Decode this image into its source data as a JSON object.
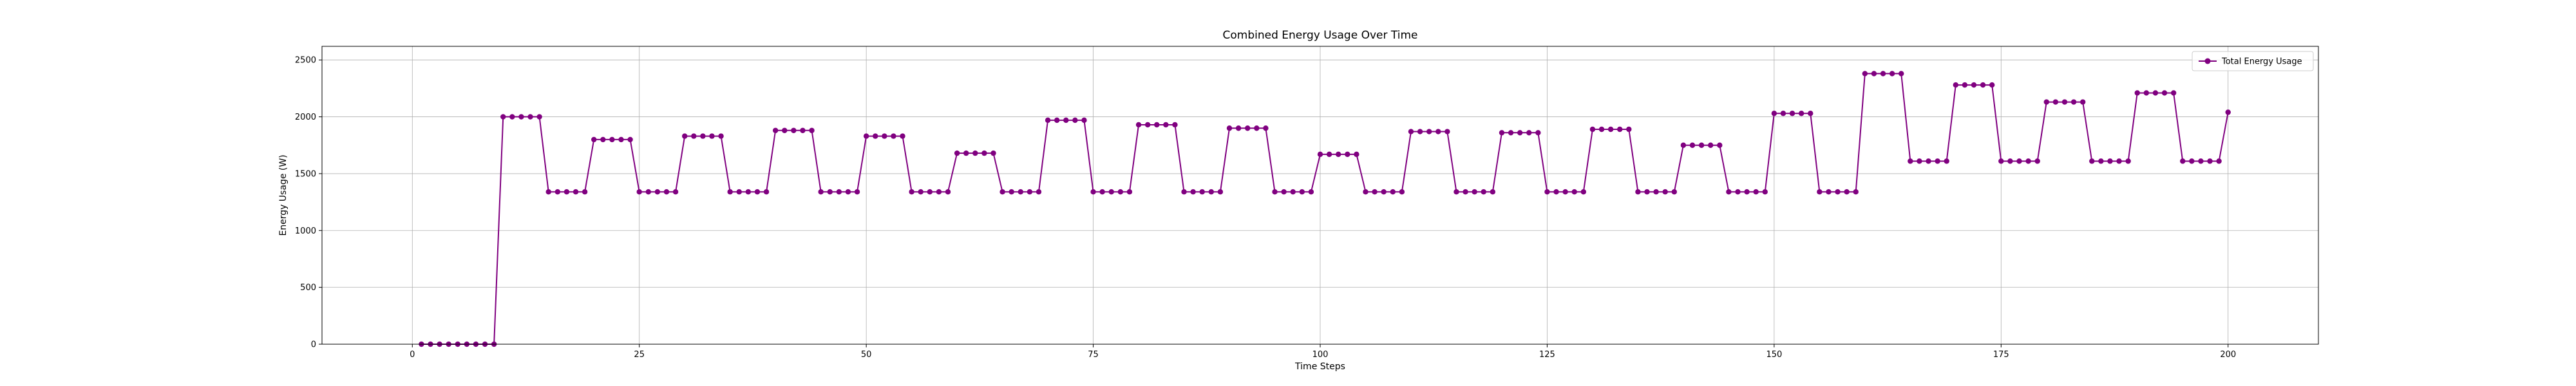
{
  "chart_data": {
    "type": "line",
    "title": "Combined Energy Usage Over Time",
    "xlabel": "Time Steps",
    "ylabel": "Energy Usage (W)",
    "xlim": [
      -9.95,
      209.95
    ],
    "ylim": [
      0,
      2620
    ],
    "xticks": [
      0,
      25,
      50,
      75,
      100,
      125,
      150,
      175,
      200
    ],
    "yticks": [
      0,
      500,
      1000,
      1500,
      2000,
      2500
    ],
    "grid": true,
    "legend_position": "top-right",
    "series": [
      {
        "name": "Total Energy Usage",
        "color": "#800080",
        "marker": "circle",
        "x": [
          1,
          2,
          3,
          4,
          5,
          6,
          7,
          8,
          9,
          10,
          11,
          12,
          13,
          14,
          15,
          16,
          17,
          18,
          19,
          20,
          21,
          22,
          23,
          24,
          25,
          26,
          27,
          28,
          29,
          30,
          31,
          32,
          33,
          34,
          35,
          36,
          37,
          38,
          39,
          40,
          41,
          42,
          43,
          44,
          45,
          46,
          47,
          48,
          49,
          50,
          51,
          52,
          53,
          54,
          55,
          56,
          57,
          58,
          59,
          60,
          61,
          62,
          63,
          64,
          65,
          66,
          67,
          68,
          69,
          70,
          71,
          72,
          73,
          74,
          75,
          76,
          77,
          78,
          79,
          80,
          81,
          82,
          83,
          84,
          85,
          86,
          87,
          88,
          89,
          90,
          91,
          92,
          93,
          94,
          95,
          96,
          97,
          98,
          99,
          100,
          101,
          102,
          103,
          104,
          105,
          106,
          107,
          108,
          109,
          110,
          111,
          112,
          113,
          114,
          115,
          116,
          117,
          118,
          119,
          120,
          121,
          122,
          123,
          124,
          125,
          126,
          127,
          128,
          129,
          130,
          131,
          132,
          133,
          134,
          135,
          136,
          137,
          138,
          139,
          140,
          141,
          142,
          143,
          144,
          145,
          146,
          147,
          148,
          149,
          150,
          151,
          152,
          153,
          154,
          155,
          156,
          157,
          158,
          159,
          160,
          161,
          162,
          163,
          164,
          165,
          166,
          167,
          168,
          169,
          170,
          171,
          172,
          173,
          174,
          175,
          176,
          177,
          178,
          179,
          180,
          181,
          182,
          183,
          184,
          185,
          186,
          187,
          188,
          189,
          190,
          191,
          192,
          193,
          194,
          195,
          196,
          197,
          198,
          199,
          200
        ],
        "values": [
          0,
          0,
          0,
          0,
          0,
          0,
          0,
          0,
          0,
          2000,
          2000,
          2000,
          2000,
          2000,
          1340,
          1340,
          1340,
          1340,
          1340,
          1800,
          1800,
          1800,
          1800,
          1800,
          1340,
          1340,
          1340,
          1340,
          1340,
          1830,
          1830,
          1830,
          1830,
          1830,
          1340,
          1340,
          1340,
          1340,
          1340,
          1880,
          1880,
          1880,
          1880,
          1880,
          1340,
          1340,
          1340,
          1340,
          1340,
          1830,
          1830,
          1830,
          1830,
          1830,
          1340,
          1340,
          1340,
          1340,
          1340,
          1680,
          1680,
          1680,
          1680,
          1680,
          1340,
          1340,
          1340,
          1340,
          1340,
          1970,
          1970,
          1970,
          1970,
          1970,
          1340,
          1340,
          1340,
          1340,
          1340,
          1930,
          1930,
          1930,
          1930,
          1930,
          1340,
          1340,
          1340,
          1340,
          1340,
          1900,
          1900,
          1900,
          1900,
          1900,
          1340,
          1340,
          1340,
          1340,
          1340,
          1670,
          1670,
          1670,
          1670,
          1670,
          1340,
          1340,
          1340,
          1340,
          1340,
          1870,
          1870,
          1870,
          1870,
          1870,
          1340,
          1340,
          1340,
          1340,
          1340,
          1860,
          1860,
          1860,
          1860,
          1860,
          1340,
          1340,
          1340,
          1340,
          1340,
          1890,
          1890,
          1890,
          1890,
          1890,
          1340,
          1340,
          1340,
          1340,
          1340,
          1750,
          1750,
          1750,
          1750,
          1750,
          1340,
          1340,
          1340,
          1340,
          1340,
          2030,
          2030,
          2030,
          2030,
          2030,
          1340,
          1340,
          1340,
          1340,
          1340,
          2380,
          2380,
          2380,
          2380,
          2380,
          1610,
          1610,
          1610,
          1610,
          1610,
          2280,
          2280,
          2280,
          2280,
          2280,
          1610,
          1610,
          1610,
          1610,
          1610,
          2130,
          2130,
          2130,
          2130,
          2130,
          1610,
          1610,
          1610,
          1610,
          1610,
          2210,
          2210,
          2210,
          2210,
          2210,
          1610,
          1610,
          1610,
          1610,
          1610,
          2040
        ]
      }
    ]
  }
}
